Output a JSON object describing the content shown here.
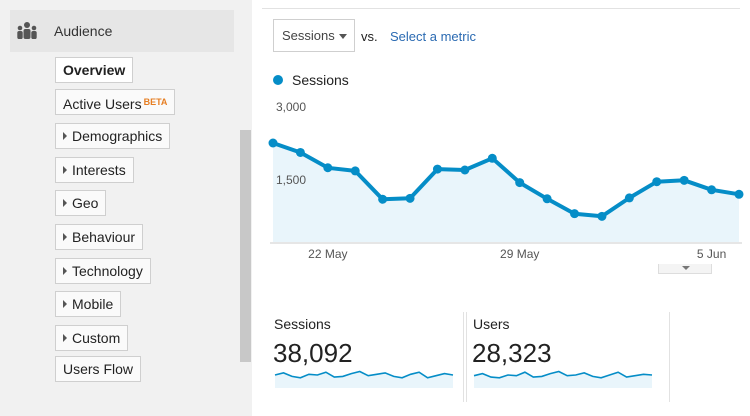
{
  "sidebar": {
    "section_label": "Audience",
    "section_icon": "audience-people-icon",
    "items": [
      {
        "label": "Overview",
        "active": true,
        "expandable": false
      },
      {
        "label": "Active Users",
        "badge": "BETA",
        "expandable": false
      },
      {
        "label": "Demographics",
        "expandable": true
      },
      {
        "label": "Interests",
        "expandable": true
      },
      {
        "label": "Geo",
        "expandable": true
      },
      {
        "label": "Behaviour",
        "expandable": true
      },
      {
        "label": "Technology",
        "expandable": true
      },
      {
        "label": "Mobile",
        "expandable": true
      },
      {
        "label": "Custom",
        "expandable": true
      },
      {
        "label": "Users Flow",
        "expandable": false
      }
    ]
  },
  "toolbar": {
    "metric_select": "Sessions",
    "vs_label": "vs.",
    "compare_link": "Select a metric"
  },
  "colors": {
    "series": "#058dc7",
    "area_fill": "#e9f5fb",
    "link": "#2a6ab2",
    "beta": "#e67e22"
  },
  "chart_data": {
    "type": "area",
    "legend": [
      "Sessions"
    ],
    "yticks": [
      "3,000",
      "1,500"
    ],
    "ylim": [
      0,
      3000
    ],
    "xtick_labels": [
      {
        "label": "22 May",
        "index": 2
      },
      {
        "label": "29 May",
        "index": 9
      },
      {
        "label": "5 Jun",
        "index": 16
      }
    ],
    "series": [
      {
        "name": "Sessions",
        "values": [
          2200,
          1990,
          1650,
          1580,
          950,
          970,
          1620,
          1600,
          1860,
          1320,
          960,
          630,
          570,
          980,
          1340,
          1370,
          1160,
          1060
        ]
      }
    ],
    "grid": false
  },
  "scorecards": [
    {
      "label": "Sessions",
      "value": "38,092",
      "spark": [
        0.5,
        0.65,
        0.4,
        0.3,
        0.55,
        0.5,
        0.7,
        0.35,
        0.4,
        0.6,
        0.75,
        0.45,
        0.55,
        0.65,
        0.4,
        0.3,
        0.55,
        0.7,
        0.3,
        0.45,
        0.6,
        0.5
      ]
    },
    {
      "label": "Users",
      "value": "28,323",
      "spark": [
        0.45,
        0.6,
        0.35,
        0.3,
        0.5,
        0.45,
        0.7,
        0.35,
        0.4,
        0.6,
        0.75,
        0.45,
        0.5,
        0.65,
        0.4,
        0.3,
        0.5,
        0.7,
        0.35,
        0.45,
        0.55,
        0.5
      ]
    }
  ]
}
